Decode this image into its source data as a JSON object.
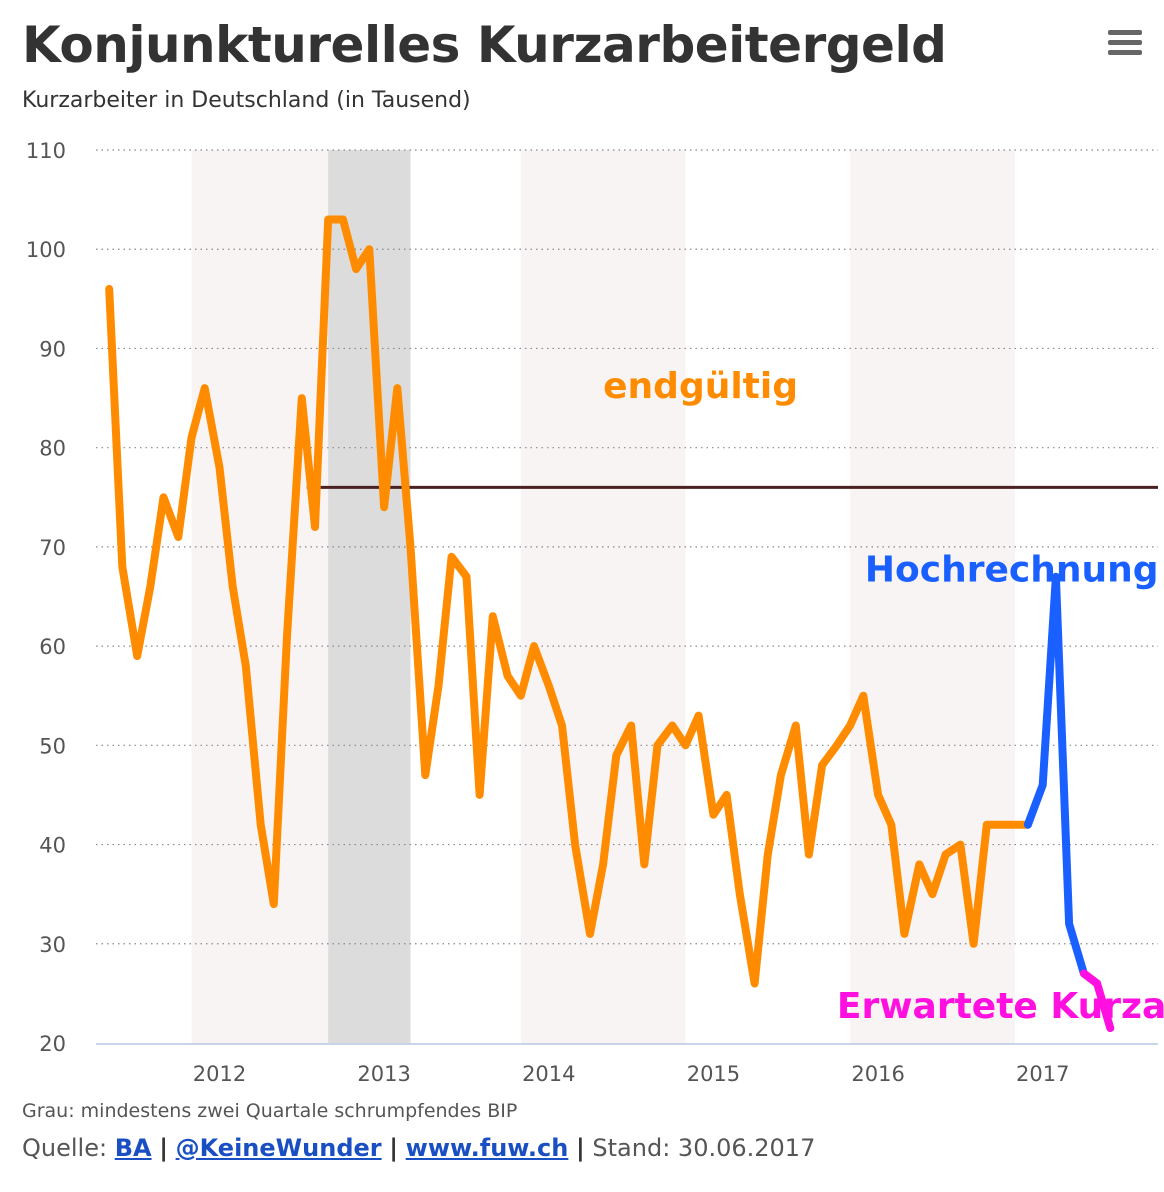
{
  "header": {
    "title": "Konjunkturelles Kurzarbeitergeld",
    "subtitle": "Kurzarbeiter in Deutschland (in Tausend)",
    "menu_icon": "hamburger-menu-icon"
  },
  "footer": {
    "note": "Grau: mindestens zwei Quartale schrumpfendes BIP",
    "source_label": "Quelle:",
    "links": [
      "BA",
      "@KeineWunder",
      "www.fuw.ch"
    ],
    "separator": "|",
    "stand": "Stand: 30.06.2017"
  },
  "colors": {
    "endgueltig": "#ff8c00",
    "hochrechnung": "#1a5fff",
    "erwartet": "#ff10e0",
    "reference_line": "#4a2020",
    "recession_band": "#dcdcdc",
    "year_band": "#f8f4f4",
    "grid": "#888888"
  },
  "chart_data": {
    "type": "line",
    "xlim": [
      2011.25,
      2017.7
    ],
    "ylim": [
      20,
      110
    ],
    "y_ticks": [
      20,
      30,
      40,
      50,
      60,
      70,
      80,
      90,
      100,
      110
    ],
    "x_ticks": [
      2012,
      2013,
      2014,
      2015,
      2016,
      2017
    ],
    "x_tick_labels": [
      "2012",
      "2013",
      "2014",
      "2015",
      "2016",
      "2017"
    ],
    "grid": "horizontal-dotted",
    "year_bands": [
      [
        2011.83,
        2012.66
      ],
      [
        2013.83,
        2014.83
      ],
      [
        2015.83,
        2016.83
      ]
    ],
    "recession_band": [
      2012.66,
      2013.16
    ],
    "reference_line": {
      "y": 76,
      "x_start": 2012.53,
      "x_end": 2017.7
    },
    "annotations": [
      {
        "text": "endgültig",
        "color": "#ff8c00",
        "x": 2014.33,
        "y": 85
      },
      {
        "text": "Hochrechnung",
        "color": "#1a5fff",
        "x": 2015.92,
        "y": 66.5
      },
      {
        "text": "Erwartete Kurzarbeit",
        "color": "#ff10e0",
        "x": 2015.75,
        "y": 22.5
      }
    ],
    "series": [
      {
        "key": "endgueltig",
        "color": "#ff8c00",
        "x": [
          2011.33,
          2011.41,
          2011.5,
          2011.58,
          2011.66,
          2011.75,
          2011.83,
          2011.91,
          2012.0,
          2012.08,
          2012.16,
          2012.25,
          2012.33,
          2012.41,
          2012.5,
          2012.58,
          2012.66,
          2012.75,
          2012.83,
          2012.91,
          2013.0,
          2013.08,
          2013.16,
          2013.25,
          2013.33,
          2013.41,
          2013.5,
          2013.58,
          2013.66,
          2013.75,
          2013.83,
          2013.91,
          2014.0,
          2014.08,
          2014.16,
          2014.25,
          2014.33,
          2014.41,
          2014.5,
          2014.58,
          2014.66,
          2014.75,
          2014.83,
          2014.91,
          2015.0,
          2015.08,
          2015.16,
          2015.25,
          2015.33,
          2015.41,
          2015.5,
          2015.58,
          2015.66,
          2015.75,
          2015.83,
          2015.91,
          2016.0,
          2016.08,
          2016.16,
          2016.25,
          2016.33,
          2016.41,
          2016.5,
          2016.58,
          2016.66,
          2016.75,
          2016.83,
          2016.91
        ],
        "values": [
          96,
          68,
          59,
          66,
          75,
          71,
          81,
          86,
          78,
          66,
          58,
          42,
          34,
          61,
          85,
          72,
          103,
          103,
          98,
          100,
          74,
          86,
          70,
          47,
          56,
          69,
          67,
          45,
          63,
          57,
          55,
          60,
          56,
          52,
          40,
          31,
          38,
          49,
          52,
          38,
          50,
          52,
          50,
          53,
          43,
          45,
          35,
          26,
          39,
          47,
          52,
          39,
          48,
          50,
          52,
          55,
          45,
          42,
          31,
          38,
          35,
          39,
          40,
          30,
          42,
          42,
          42,
          42
        ]
      },
      {
        "key": "hochrechnung",
        "color": "#1a5fff",
        "x": [
          2016.91,
          2017.0,
          2017.08,
          2017.16,
          2017.25
        ],
        "values": [
          42,
          46,
          67,
          32,
          27
        ]
      },
      {
        "key": "erwartet",
        "color": "#ff10e0",
        "x": [
          2017.25,
          2017.33,
          2017.41
        ],
        "values": [
          27,
          26,
          21.5
        ]
      }
    ]
  }
}
